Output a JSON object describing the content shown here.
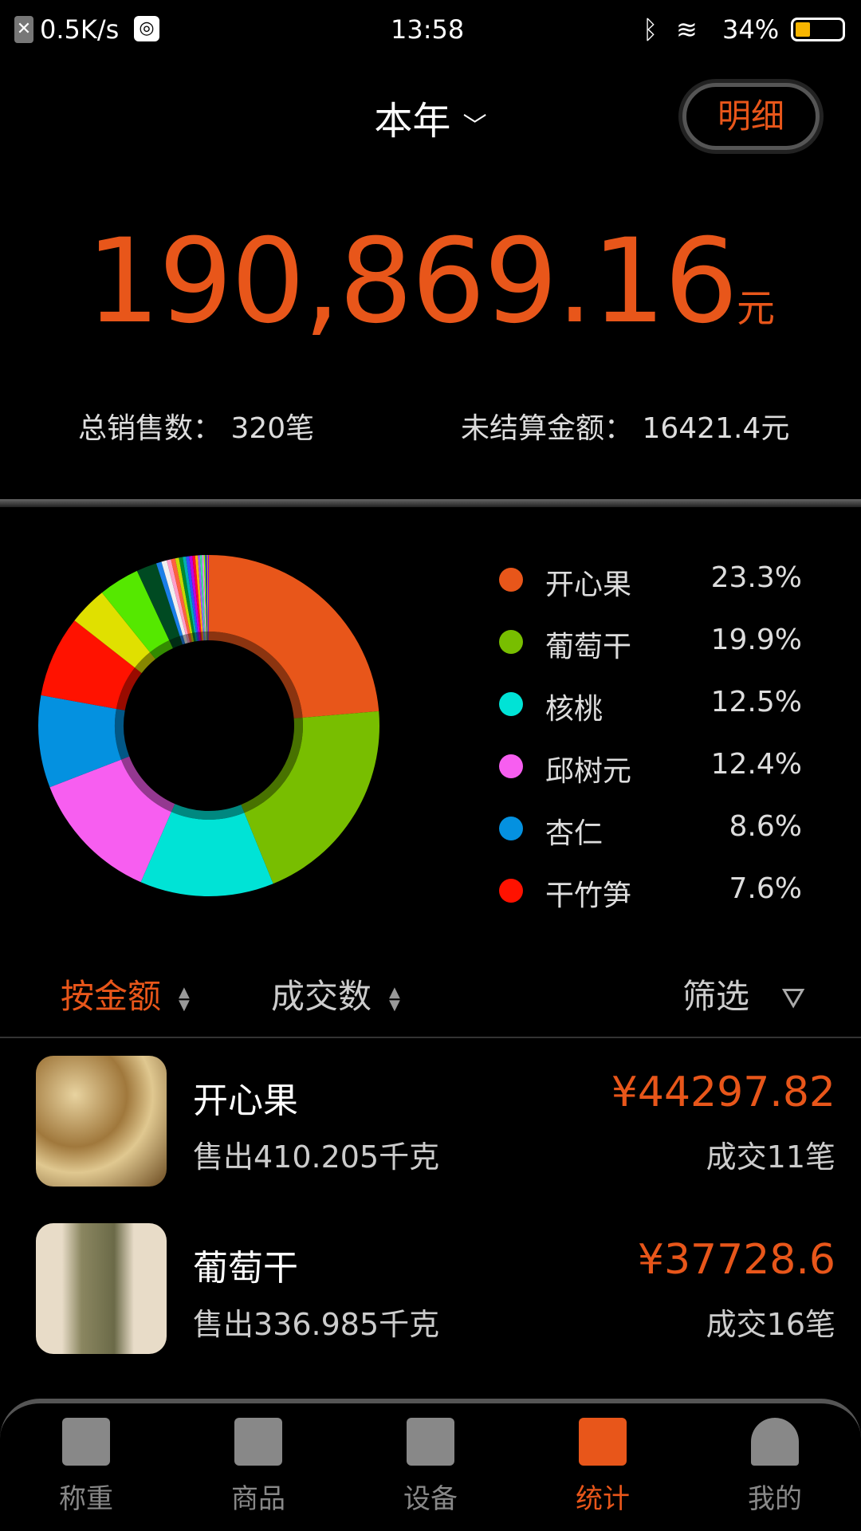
{
  "status_bar": {
    "net_speed": "0.5K/s",
    "time": "13:58",
    "battery": "34%",
    "battery_level": 0.34
  },
  "header": {
    "period": "本年",
    "detail_button": "明细"
  },
  "summary": {
    "total": "190,869.16",
    "unit": "元",
    "sales_count_label": "总销售数：",
    "sales_count": "320笔",
    "unsettled_label": "未结算金额：",
    "unsettled": "16421.4元"
  },
  "chart_data": {
    "type": "pie",
    "donut": true,
    "legend_position": "right",
    "series": [
      {
        "name": "开心果",
        "value": 23.3,
        "label": "23.3%",
        "color": "#e8561a"
      },
      {
        "name": "葡萄干",
        "value": 19.9,
        "label": "19.9%",
        "color": "#78be00"
      },
      {
        "name": "核桃",
        "value": 12.5,
        "label": "12.5%",
        "color": "#00e3d6"
      },
      {
        "name": "邱树元",
        "value": 12.4,
        "label": "12.4%",
        "color": "#f75ef0"
      },
      {
        "name": "杏仁",
        "value": 8.6,
        "label": "8.6%",
        "color": "#0491e0"
      },
      {
        "name": "干竹笋",
        "value": 7.6,
        "label": "7.6%",
        "color": "#ff1200"
      }
    ],
    "other_slices": [
      {
        "value": 3.6,
        "color": "#e0e000"
      },
      {
        "value": 3.8,
        "color": "#55e800"
      },
      {
        "value": 1.9,
        "color": "#004a22"
      },
      {
        "value": 0.5,
        "color": "#1a7fe8"
      },
      {
        "value": 0.5,
        "color": "#f0f0f0"
      },
      {
        "value": 0.4,
        "color": "#ff9ec8"
      },
      {
        "value": 0.4,
        "color": "#ff6040"
      },
      {
        "value": 0.35,
        "color": "#c8d800"
      },
      {
        "value": 0.35,
        "color": "#008a30"
      },
      {
        "value": 0.3,
        "color": "#00b0b0"
      },
      {
        "value": 0.3,
        "color": "#3050ff"
      },
      {
        "value": 0.3,
        "color": "#c000e0"
      },
      {
        "value": 0.25,
        "color": "#ff0040"
      },
      {
        "value": 0.25,
        "color": "#ffb000"
      },
      {
        "value": 0.2,
        "color": "#a060ff"
      },
      {
        "value": 0.2,
        "color": "#40e0a0"
      },
      {
        "value": 0.15,
        "color": "#ff80ff"
      },
      {
        "value": 0.15,
        "color": "#80ff00"
      },
      {
        "value": 0.12,
        "color": "#0000ff"
      },
      {
        "value": 0.1,
        "color": "#ffd700"
      },
      {
        "value": 0.1,
        "color": "#8000ff"
      }
    ]
  },
  "sort_bar": {
    "by_amount": "按金额",
    "by_count": "成交数",
    "filter": "筛选"
  },
  "items": [
    {
      "name": "开心果",
      "sold": "售出410.205千克",
      "price": "¥44297.82",
      "count": "成交11笔"
    },
    {
      "name": "葡萄干",
      "sold": "售出336.985千克",
      "price": "¥37728.6",
      "count": "成交16笔"
    }
  ],
  "tabs": [
    {
      "label": "称重"
    },
    {
      "label": "商品"
    },
    {
      "label": "设备"
    },
    {
      "label": "统计",
      "active": true
    },
    {
      "label": "我的"
    }
  ],
  "colors": {
    "accent": "#e8561a"
  }
}
